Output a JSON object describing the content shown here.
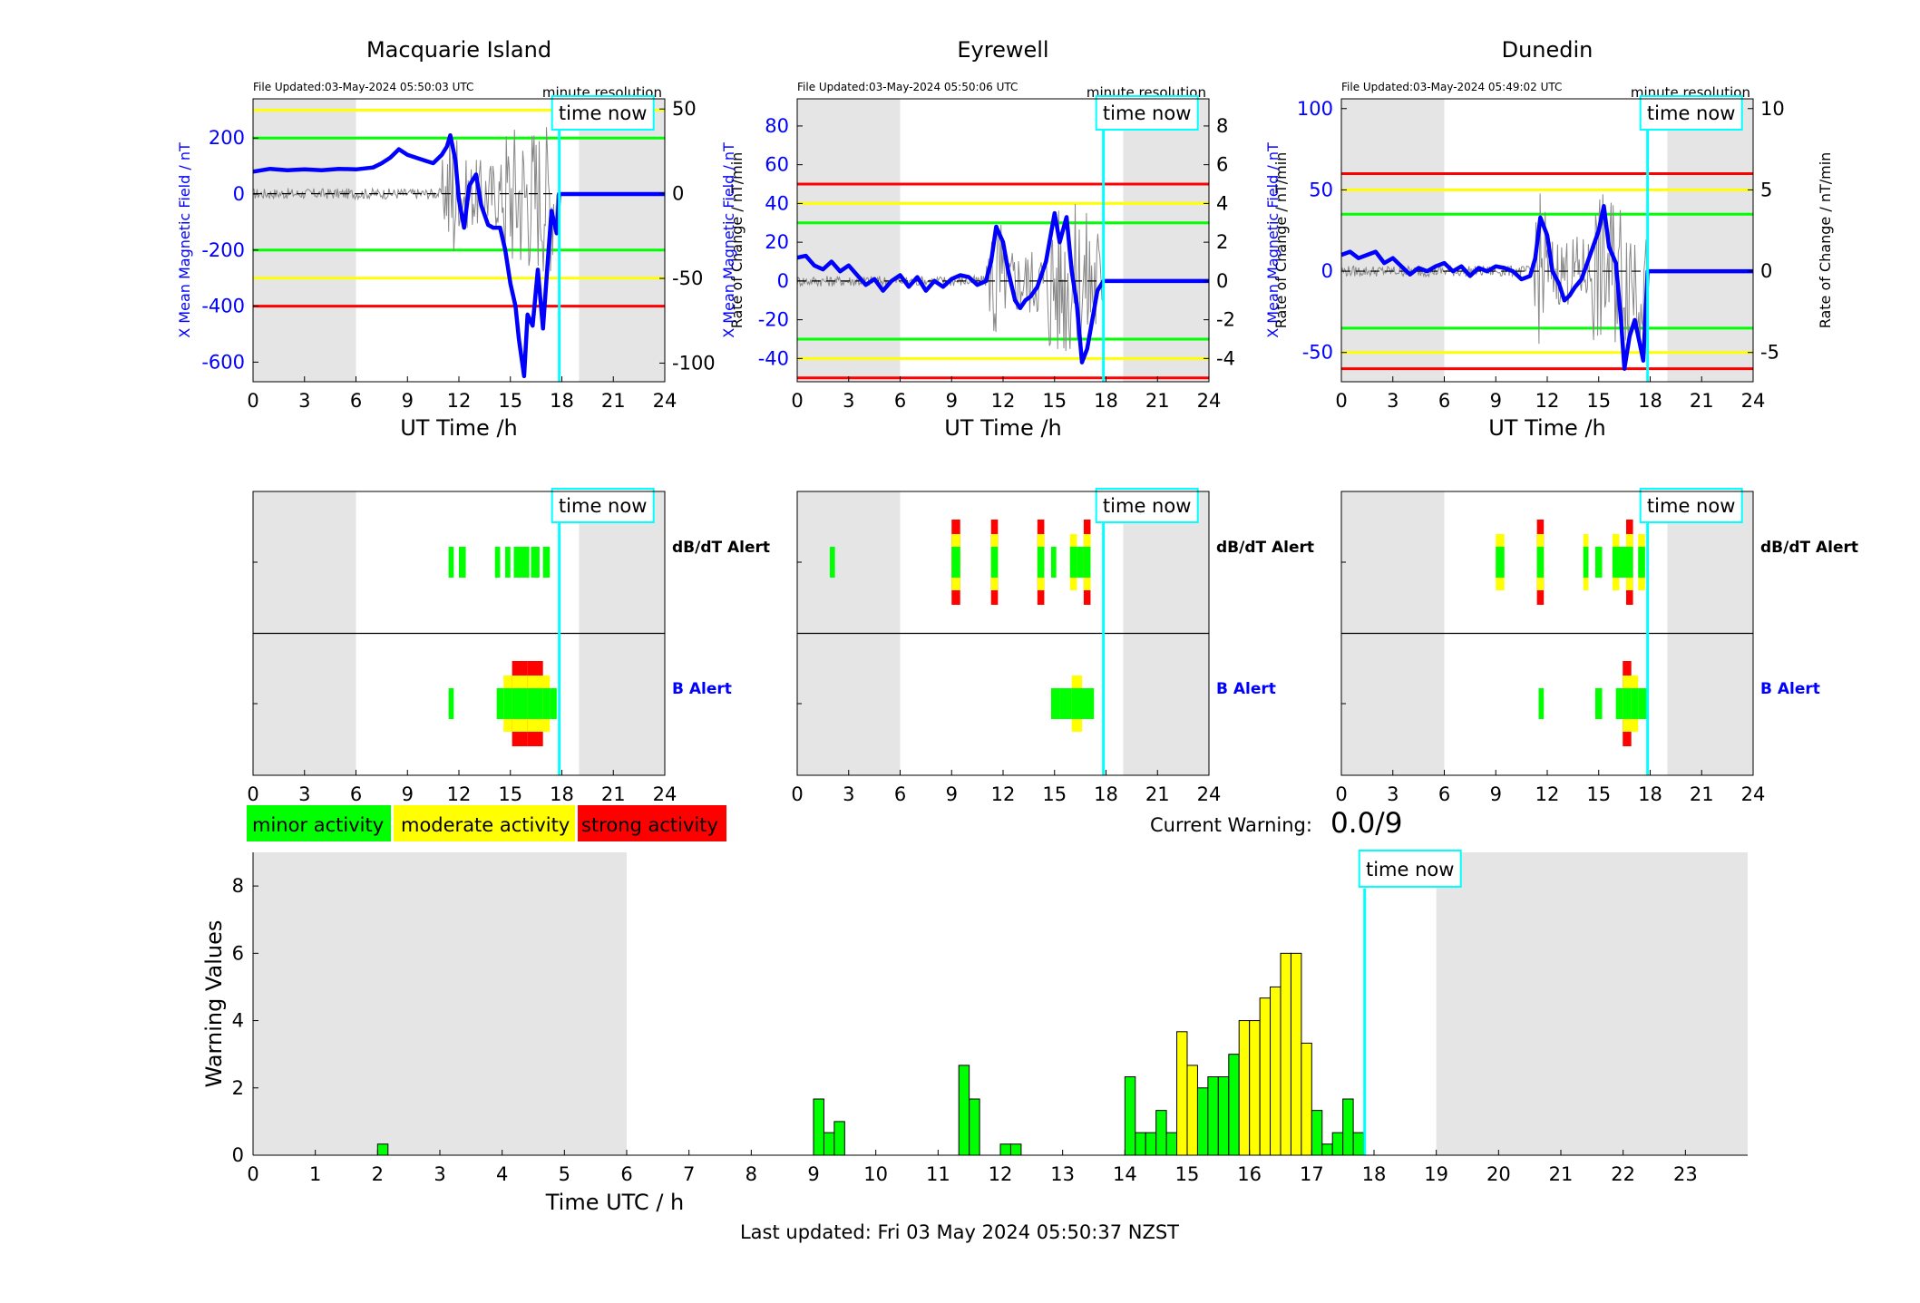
{
  "colors": {
    "green": "#00ff00",
    "yellow": "#ffff00",
    "red": "#ff0000",
    "blue": "#0000ff",
    "cyan": "#00ffff",
    "night": "#e5e5e5",
    "trace": "#888888"
  },
  "common": {
    "time_now_label": "time now",
    "resolution_label": "minute resolution",
    "xlabel": "UT Time /h",
    "ylabel_left": "X Mean Magnetic Field / nT",
    "ylabel_right": "Rate of Change / nT/min",
    "dbdt_label": "dB/dT Alert",
    "b_label": "B Alert",
    "x_ticks": [
      0,
      3,
      6,
      9,
      12,
      15,
      18,
      21,
      24
    ],
    "now_hour": 17.85,
    "night": [
      [
        0,
        6
      ],
      [
        19,
        24
      ]
    ]
  },
  "stations": [
    {
      "title": "Macquarie Island",
      "file_updated": "File Updated:03-May-2024 05:50:03 UTC",
      "ylim": [
        -670,
        340
      ],
      "y_ticks": [
        200,
        0,
        -200,
        -400,
        -600
      ],
      "r_ylim": [
        -111,
        56
      ],
      "r_ticks": [
        50,
        0,
        -50,
        -100
      ],
      "thresholds": [
        {
          "v": 300,
          "c": "yellow"
        },
        {
          "v": 200,
          "c": "green"
        },
        {
          "v": -200,
          "c": "green"
        },
        {
          "v": -300,
          "c": "yellow"
        },
        {
          "v": -400,
          "c": "red"
        }
      ],
      "field": [
        [
          0,
          80
        ],
        [
          1,
          90
        ],
        [
          2,
          85
        ],
        [
          3,
          88
        ],
        [
          4,
          85
        ],
        [
          5,
          90
        ],
        [
          6,
          88
        ],
        [
          7,
          95
        ],
        [
          7.5,
          110
        ],
        [
          8,
          130
        ],
        [
          8.5,
          160
        ],
        [
          9,
          140
        ],
        [
          9.5,
          130
        ],
        [
          10,
          120
        ],
        [
          10.5,
          110
        ],
        [
          11,
          140
        ],
        [
          11.3,
          170
        ],
        [
          11.5,
          210
        ],
        [
          11.8,
          120
        ],
        [
          12,
          -20
        ],
        [
          12.3,
          -120
        ],
        [
          12.6,
          30
        ],
        [
          13,
          70
        ],
        [
          13.3,
          -40
        ],
        [
          13.7,
          -110
        ],
        [
          14,
          -120
        ],
        [
          14.4,
          -120
        ],
        [
          14.7,
          -200
        ],
        [
          15,
          -320
        ],
        [
          15.3,
          -400
        ],
        [
          15.5,
          -520
        ],
        [
          15.8,
          -650
        ],
        [
          16,
          -430
        ],
        [
          16.3,
          -470
        ],
        [
          16.6,
          -270
        ],
        [
          16.9,
          -480
        ],
        [
          17.2,
          -220
        ],
        [
          17.4,
          -60
        ],
        [
          17.7,
          -140
        ],
        [
          17.85,
          0
        ],
        [
          24,
          0
        ]
      ],
      "dbdt": [
        {
          "a": 11.4,
          "b": 11.7,
          "level": 1
        },
        {
          "a": 12.0,
          "b": 12.4,
          "level": 1
        },
        {
          "a": 14.1,
          "b": 14.4,
          "level": 1
        },
        {
          "a": 14.7,
          "b": 15.0,
          "level": 1
        },
        {
          "a": 15.2,
          "b": 16.1,
          "level": 1
        },
        {
          "a": 16.2,
          "b": 16.7,
          "level": 1
        },
        {
          "a": 16.9,
          "b": 17.3,
          "level": 1
        }
      ],
      "balert": [
        {
          "a": 11.4,
          "b": 11.7,
          "level": 1
        },
        {
          "a": 14.2,
          "b": 14.6,
          "level": 1
        },
        {
          "a": 14.6,
          "b": 15.1,
          "level": 2
        },
        {
          "a": 15.1,
          "b": 16.0,
          "level": 3
        },
        {
          "a": 16.0,
          "b": 16.9,
          "level": 3
        },
        {
          "a": 16.9,
          "b": 17.3,
          "level": 2
        },
        {
          "a": 17.3,
          "b": 17.7,
          "level": 1
        }
      ]
    },
    {
      "title": "Eyrewell",
      "file_updated": "File Updated:03-May-2024 05:50:06 UTC",
      "ylim": [
        -52,
        94
      ],
      "y_ticks": [
        80,
        60,
        40,
        20,
        0,
        -20,
        -40
      ],
      "r_ylim": [
        -5.2,
        9.4
      ],
      "r_ticks": [
        8,
        6,
        4,
        2,
        0,
        -2,
        -4
      ],
      "thresholds": [
        {
          "v": 50,
          "c": "red"
        },
        {
          "v": 40,
          "c": "yellow"
        },
        {
          "v": 30,
          "c": "green"
        },
        {
          "v": -30,
          "c": "green"
        },
        {
          "v": -40,
          "c": "yellow"
        },
        {
          "v": -50,
          "c": "red"
        }
      ],
      "field": [
        [
          0,
          12
        ],
        [
          0.5,
          13
        ],
        [
          1,
          8
        ],
        [
          1.5,
          6
        ],
        [
          2,
          10
        ],
        [
          2.5,
          5
        ],
        [
          3,
          8
        ],
        [
          3.5,
          3
        ],
        [
          4,
          -2
        ],
        [
          4.5,
          1
        ],
        [
          5,
          -5
        ],
        [
          5.5,
          0
        ],
        [
          6,
          3
        ],
        [
          6.5,
          -3
        ],
        [
          7,
          2
        ],
        [
          7.5,
          -5
        ],
        [
          8,
          0
        ],
        [
          8.5,
          -3
        ],
        [
          9,
          1
        ],
        [
          9.5,
          3
        ],
        [
          10,
          2
        ],
        [
          10.5,
          -2
        ],
        [
          11,
          0
        ],
        [
          11.3,
          10
        ],
        [
          11.6,
          28
        ],
        [
          12,
          20
        ],
        [
          12.3,
          5
        ],
        [
          12.7,
          -10
        ],
        [
          13,
          -14
        ],
        [
          13.3,
          -10
        ],
        [
          13.6,
          -8
        ],
        [
          14,
          -3
        ],
        [
          14.5,
          10
        ],
        [
          15,
          35
        ],
        [
          15.3,
          20
        ],
        [
          15.7,
          33
        ],
        [
          16,
          5
        ],
        [
          16.3,
          -12
        ],
        [
          16.6,
          -42
        ],
        [
          16.9,
          -35
        ],
        [
          17.2,
          -20
        ],
        [
          17.5,
          -5
        ],
        [
          17.85,
          0
        ],
        [
          24,
          0
        ]
      ],
      "dbdt": [
        {
          "a": 1.9,
          "b": 2.2,
          "level": 1
        },
        {
          "a": 9.0,
          "b": 9.5,
          "level": 3
        },
        {
          "a": 11.3,
          "b": 11.7,
          "level": 3
        },
        {
          "a": 14.0,
          "b": 14.4,
          "level": 3
        },
        {
          "a": 14.8,
          "b": 15.1,
          "level": 1
        },
        {
          "a": 15.9,
          "b": 16.3,
          "level": 2
        },
        {
          "a": 16.3,
          "b": 16.7,
          "level": 1
        },
        {
          "a": 16.7,
          "b": 17.1,
          "level": 3
        }
      ],
      "balert": [
        {
          "a": 14.8,
          "b": 15.3,
          "level": 1
        },
        {
          "a": 15.3,
          "b": 16.0,
          "level": 1
        },
        {
          "a": 16.0,
          "b": 16.6,
          "level": 2
        },
        {
          "a": 16.6,
          "b": 17.3,
          "level": 1
        }
      ]
    },
    {
      "title": "Dunedin",
      "file_updated": "File Updated:03-May-2024 05:49:02 UTC",
      "ylim": [
        -68,
        106
      ],
      "y_ticks": [
        100,
        50,
        0,
        -50
      ],
      "r_ylim": [
        -6.8,
        10.6
      ],
      "r_ticks": [
        10,
        5,
        0,
        -5
      ],
      "thresholds": [
        {
          "v": 60,
          "c": "red"
        },
        {
          "v": 50,
          "c": "yellow"
        },
        {
          "v": 35,
          "c": "green"
        },
        {
          "v": -35,
          "c": "green"
        },
        {
          "v": -50,
          "c": "yellow"
        },
        {
          "v": -60,
          "c": "red"
        }
      ],
      "field": [
        [
          0,
          10
        ],
        [
          0.5,
          12
        ],
        [
          1,
          8
        ],
        [
          1.5,
          10
        ],
        [
          2,
          12
        ],
        [
          2.5,
          5
        ],
        [
          3,
          8
        ],
        [
          3.5,
          3
        ],
        [
          4,
          -2
        ],
        [
          4.5,
          2
        ],
        [
          5,
          0
        ],
        [
          5.5,
          3
        ],
        [
          6,
          5
        ],
        [
          6.5,
          0
        ],
        [
          7,
          3
        ],
        [
          7.5,
          -3
        ],
        [
          8,
          2
        ],
        [
          8.5,
          0
        ],
        [
          9,
          3
        ],
        [
          9.5,
          2
        ],
        [
          10,
          0
        ],
        [
          10.5,
          -5
        ],
        [
          11,
          -3
        ],
        [
          11.3,
          8
        ],
        [
          11.6,
          33
        ],
        [
          12,
          22
        ],
        [
          12.3,
          0
        ],
        [
          12.7,
          -8
        ],
        [
          13,
          -18
        ],
        [
          13.3,
          -15
        ],
        [
          13.6,
          -10
        ],
        [
          14,
          -5
        ],
        [
          14.5,
          10
        ],
        [
          15,
          25
        ],
        [
          15.3,
          40
        ],
        [
          15.6,
          15
        ],
        [
          16,
          5
        ],
        [
          16.3,
          -30
        ],
        [
          16.5,
          -60
        ],
        [
          16.8,
          -40
        ],
        [
          17.1,
          -30
        ],
        [
          17.4,
          -45
        ],
        [
          17.6,
          -55
        ],
        [
          17.85,
          0
        ],
        [
          24,
          0
        ]
      ],
      "dbdt": [
        {
          "a": 9.0,
          "b": 9.5,
          "level": 2
        },
        {
          "a": 11.4,
          "b": 11.8,
          "level": 3
        },
        {
          "a": 14.1,
          "b": 14.4,
          "level": 2
        },
        {
          "a": 14.8,
          "b": 15.2,
          "level": 1
        },
        {
          "a": 15.8,
          "b": 16.2,
          "level": 2
        },
        {
          "a": 16.2,
          "b": 16.6,
          "level": 1
        },
        {
          "a": 16.6,
          "b": 17.0,
          "level": 3
        },
        {
          "a": 17.3,
          "b": 17.7,
          "level": 2
        }
      ],
      "balert": [
        {
          "a": 11.5,
          "b": 11.8,
          "level": 1
        },
        {
          "a": 14.8,
          "b": 15.2,
          "level": 1
        },
        {
          "a": 16.0,
          "b": 16.4,
          "level": 1
        },
        {
          "a": 16.4,
          "b": 16.9,
          "level": 3
        },
        {
          "a": 16.9,
          "b": 17.3,
          "level": 2
        },
        {
          "a": 17.3,
          "b": 17.8,
          "level": 1
        }
      ]
    }
  ],
  "legend": [
    {
      "label": "minor activity",
      "color": "#00ff00"
    },
    {
      "label": "moderate activity",
      "color": "#ffff00"
    },
    {
      "label": "strong activity",
      "color": "#ff0000"
    }
  ],
  "current_warning": {
    "label": "Current Warning:",
    "value": "0.0/9"
  },
  "warning_chart": {
    "ylabel": "Warning Values",
    "xlabel": "Time UTC / h",
    "ylim": [
      0,
      9
    ],
    "xlim": [
      0,
      24
    ],
    "y_ticks": [
      0,
      2,
      4,
      6,
      8
    ],
    "x_ticks": [
      0,
      1,
      2,
      3,
      4,
      5,
      6,
      7,
      8,
      9,
      10,
      11,
      12,
      13,
      14,
      15,
      16,
      17,
      18,
      19,
      20,
      21,
      22,
      23
    ],
    "bars": [
      {
        "t": 2.0,
        "v": 0.33,
        "c": "green"
      },
      {
        "t": 9.0,
        "v": 1.67,
        "c": "green"
      },
      {
        "t": 9.167,
        "v": 0.67,
        "c": "green"
      },
      {
        "t": 9.333,
        "v": 1.0,
        "c": "green"
      },
      {
        "t": 11.333,
        "v": 2.67,
        "c": "green"
      },
      {
        "t": 11.5,
        "v": 1.67,
        "c": "green"
      },
      {
        "t": 12.0,
        "v": 0.33,
        "c": "green"
      },
      {
        "t": 12.167,
        "v": 0.33,
        "c": "green"
      },
      {
        "t": 14.0,
        "v": 2.33,
        "c": "green"
      },
      {
        "t": 14.167,
        "v": 0.67,
        "c": "green"
      },
      {
        "t": 14.333,
        "v": 0.67,
        "c": "green"
      },
      {
        "t": 14.5,
        "v": 1.33,
        "c": "green"
      },
      {
        "t": 14.667,
        "v": 0.67,
        "c": "green"
      },
      {
        "t": 14.833,
        "v": 3.67,
        "c": "yellow"
      },
      {
        "t": 15.0,
        "v": 2.67,
        "c": "yellow"
      },
      {
        "t": 15.167,
        "v": 2.0,
        "c": "green"
      },
      {
        "t": 15.333,
        "v": 2.33,
        "c": "green"
      },
      {
        "t": 15.5,
        "v": 2.33,
        "c": "green"
      },
      {
        "t": 15.667,
        "v": 3.0,
        "c": "green"
      },
      {
        "t": 15.833,
        "v": 4.0,
        "c": "yellow"
      },
      {
        "t": 16.0,
        "v": 4.0,
        "c": "yellow"
      },
      {
        "t": 16.167,
        "v": 4.67,
        "c": "yellow"
      },
      {
        "t": 16.333,
        "v": 5.0,
        "c": "yellow"
      },
      {
        "t": 16.5,
        "v": 6.0,
        "c": "yellow"
      },
      {
        "t": 16.667,
        "v": 6.0,
        "c": "yellow"
      },
      {
        "t": 16.833,
        "v": 3.33,
        "c": "yellow"
      },
      {
        "t": 17.0,
        "v": 1.33,
        "c": "green"
      },
      {
        "t": 17.167,
        "v": 0.33,
        "c": "green"
      },
      {
        "t": 17.333,
        "v": 0.67,
        "c": "green"
      },
      {
        "t": 17.5,
        "v": 1.67,
        "c": "green"
      },
      {
        "t": 17.667,
        "v": 0.67,
        "c": "green"
      }
    ]
  },
  "last_updated": "Last updated: Fri 03 May 2024 05:50:37 NZST"
}
